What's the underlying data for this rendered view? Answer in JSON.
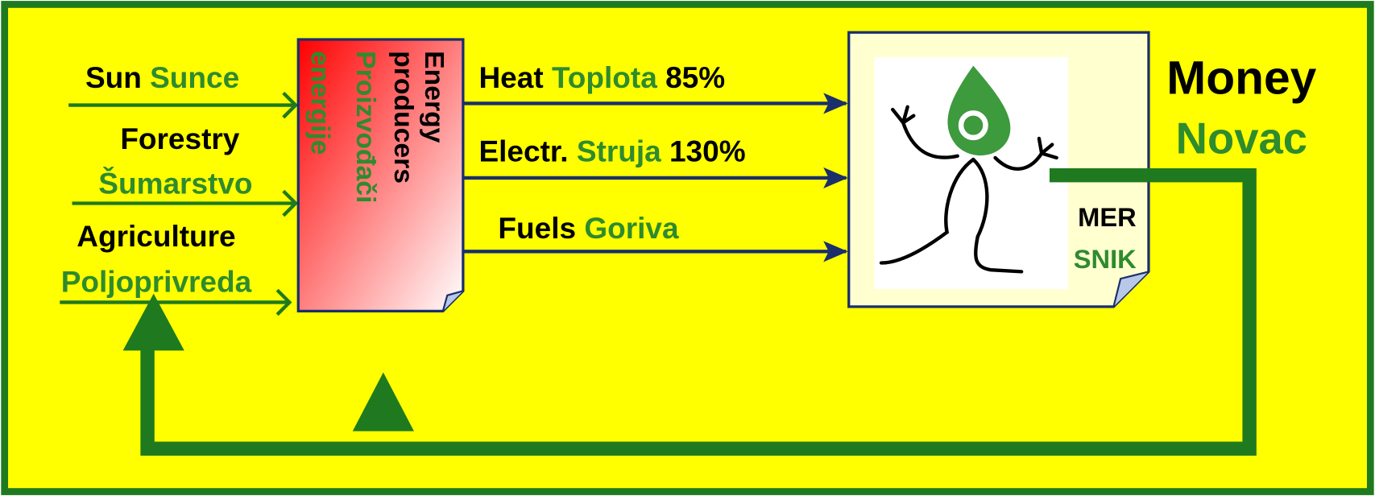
{
  "inputs": [
    {
      "en": "Sun",
      "hr": "Sunce"
    },
    {
      "en": "Forestry",
      "hr": "Šumarstvo"
    },
    {
      "en": "Agriculture",
      "hr": "Poljoprivreda"
    }
  ],
  "producer": {
    "en_line1": "Energy",
    "en_line2": "producers",
    "hr_line1": "Proizvođači",
    "hr_line2": "energije"
  },
  "outputs": [
    {
      "en": "Heat",
      "hr": "Toplota",
      "share": "85%"
    },
    {
      "en": "Electr.",
      "hr": "Struja",
      "share": "130%"
    },
    {
      "en": "Fuels",
      "hr": "Goriva"
    }
  ],
  "consumer": {
    "en": "MER",
    "hr": "SNIK"
  },
  "money": {
    "en": "Money",
    "hr": "Novac"
  }
}
